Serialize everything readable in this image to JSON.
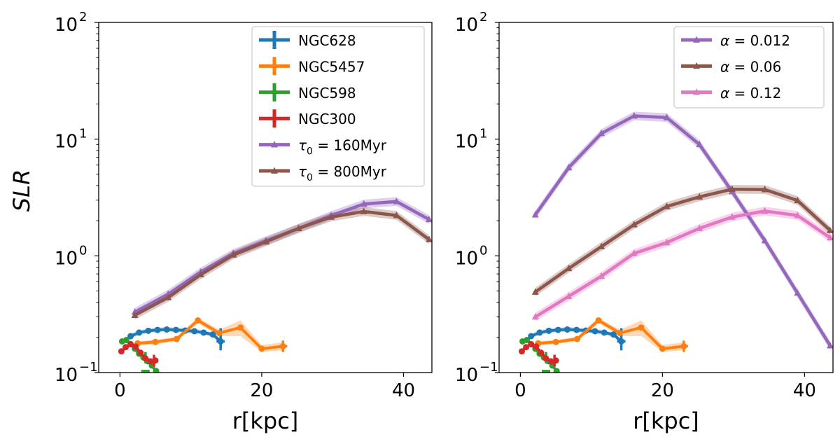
{
  "figure": {
    "ylabel": "SLR",
    "colors": {
      "NGC628": "#1f77b4",
      "NGC5457": "#ff7f0e",
      "NGC598": "#2ca02c",
      "NGC300": "#d62728",
      "purple": "#9467bd",
      "brown": "#8c564b",
      "pink": "#e377c2"
    }
  },
  "chart_data": [
    {
      "type": "line",
      "panel": "left",
      "xlabel": "r[kpc]",
      "ylabel": "SLR",
      "yscale": "log",
      "xlim": [
        -3,
        44
      ],
      "ylim": [
        0.1,
        100
      ],
      "xticks": [
        0,
        20,
        40
      ],
      "yticks": [
        {
          "value": 0.1,
          "base": "10",
          "exp": "−1"
        },
        {
          "value": 1,
          "base": "10",
          "exp": "0"
        },
        {
          "value": 10,
          "base": "10",
          "exp": "1"
        },
        {
          "value": 100,
          "base": "10",
          "exp": "2"
        }
      ],
      "legend_position": "top-right",
      "series": [
        {
          "name": "NGC628",
          "label": "NGC628",
          "kind": "obs",
          "color": "#1f77b4",
          "x": [
            1.5,
            2.7,
            4.0,
            5.3,
            6.6,
            7.9,
            9.2,
            10.5,
            11.8,
            13.1,
            14.2
          ],
          "y": [
            0.205,
            0.22,
            0.228,
            0.232,
            0.234,
            0.232,
            0.229,
            0.226,
            0.22,
            0.212,
            0.185
          ],
          "err_x": [
            14.2
          ],
          "err_lo": [
            0.155
          ],
          "err_hi": [
            0.24
          ]
        },
        {
          "name": "NGC5457",
          "label": "NGC5457",
          "kind": "obs",
          "color": "#ff7f0e",
          "x": [
            2.5,
            5.0,
            8.0,
            11.0,
            14.0,
            17.0,
            20.0,
            23.0
          ],
          "y": [
            0.178,
            0.183,
            0.194,
            0.28,
            0.218,
            0.243,
            0.16,
            0.168
          ],
          "band_lo": [
            0.17,
            0.175,
            0.185,
            0.265,
            0.205,
            0.205,
            0.15,
            0.155
          ],
          "band_hi": [
            0.186,
            0.19,
            0.203,
            0.295,
            0.233,
            0.28,
            0.172,
            0.182
          ],
          "err_x": [
            23.0
          ],
          "err_lo": [
            0.15
          ],
          "err_hi": [
            0.188
          ]
        },
        {
          "name": "NGC598",
          "label": "NGC598",
          "kind": "obs",
          "color": "#2ca02c",
          "x": [
            0.3,
            0.9,
            1.5,
            2.1,
            2.7,
            3.3,
            3.9,
            4.5,
            5.1
          ],
          "y": [
            0.185,
            0.19,
            0.175,
            0.16,
            0.145,
            0.135,
            0.125,
            0.115,
            0.103
          ],
          "err_x": [
            3.6
          ],
          "err_lo": [
            0.12
          ],
          "err_hi": [
            0.15
          ]
        },
        {
          "name": "NGC300",
          "label": "NGC300",
          "kind": "obs",
          "color": "#d62728",
          "x": [
            0.2,
            0.8,
            1.5,
            2.2,
            2.9,
            3.6,
            4.3,
            5.0
          ],
          "y": [
            0.152,
            0.165,
            0.175,
            0.167,
            0.148,
            0.132,
            0.125,
            0.127
          ],
          "err_x": [
            4.8
          ],
          "err_lo": [
            0.113
          ],
          "err_hi": [
            0.142
          ]
        },
        {
          "name": "tau0_160",
          "label_prefix": "τ",
          "label_sub": "0",
          "label_suffix": " = 160Myr",
          "kind": "model",
          "color": "#9467bd",
          "x": [
            2.1,
            6.8,
            11.4,
            16.0,
            20.6,
            25.2,
            29.8,
            34.4,
            39.0,
            43.6
          ],
          "y": [
            0.33,
            0.47,
            0.73,
            1.05,
            1.35,
            1.72,
            2.22,
            2.78,
            2.92,
            2.05
          ]
        },
        {
          "name": "tau0_800",
          "label_prefix": "τ",
          "label_sub": "0",
          "label_suffix": " = 800Myr",
          "kind": "model",
          "color": "#8c564b",
          "x": [
            2.1,
            6.8,
            11.4,
            16.0,
            20.6,
            25.2,
            29.8,
            34.4,
            39.0,
            43.6
          ],
          "y": [
            0.31,
            0.44,
            0.69,
            1.02,
            1.32,
            1.72,
            2.15,
            2.4,
            2.22,
            1.38
          ]
        }
      ]
    },
    {
      "type": "line",
      "panel": "right",
      "xlabel": "r[kpc]",
      "yscale": "log",
      "xlim": [
        -3,
        44
      ],
      "ylim": [
        0.1,
        100
      ],
      "xticks": [
        0,
        20,
        40
      ],
      "yticks": [
        {
          "value": 0.1,
          "base": "10",
          "exp": "−1"
        },
        {
          "value": 1,
          "base": "10",
          "exp": "0"
        },
        {
          "value": 10,
          "base": "10",
          "exp": "1"
        },
        {
          "value": 100,
          "base": "10",
          "exp": "2"
        }
      ],
      "legend_position": "top-right",
      "series": [
        {
          "name": "NGC628",
          "kind": "obs",
          "color": "#1f77b4",
          "x": [
            1.5,
            2.7,
            4.0,
            5.3,
            6.6,
            7.9,
            9.2,
            10.5,
            11.8,
            13.1,
            14.2
          ],
          "y": [
            0.205,
            0.22,
            0.228,
            0.232,
            0.234,
            0.232,
            0.229,
            0.226,
            0.22,
            0.212,
            0.185
          ],
          "err_x": [
            14.2
          ],
          "err_lo": [
            0.155
          ],
          "err_hi": [
            0.24
          ]
        },
        {
          "name": "NGC5457",
          "kind": "obs",
          "color": "#ff7f0e",
          "x": [
            2.5,
            5.0,
            8.0,
            11.0,
            14.0,
            17.0,
            20.0,
            23.0
          ],
          "y": [
            0.178,
            0.183,
            0.194,
            0.28,
            0.218,
            0.243,
            0.16,
            0.168
          ],
          "band_lo": [
            0.17,
            0.175,
            0.185,
            0.265,
            0.205,
            0.205,
            0.15,
            0.155
          ],
          "band_hi": [
            0.186,
            0.19,
            0.203,
            0.295,
            0.233,
            0.28,
            0.172,
            0.182
          ],
          "err_x": [
            23.0
          ],
          "err_lo": [
            0.15
          ],
          "err_hi": [
            0.188
          ]
        },
        {
          "name": "NGC598",
          "kind": "obs",
          "color": "#2ca02c",
          "x": [
            0.3,
            0.9,
            1.5,
            2.1,
            2.7,
            3.3,
            3.9,
            4.5,
            5.1
          ],
          "y": [
            0.185,
            0.19,
            0.175,
            0.16,
            0.145,
            0.135,
            0.125,
            0.115,
            0.103
          ],
          "err_x": [
            3.6
          ],
          "err_lo": [
            0.12
          ],
          "err_hi": [
            0.15
          ]
        },
        {
          "name": "NGC300",
          "kind": "obs",
          "color": "#d62728",
          "x": [
            0.2,
            0.8,
            1.5,
            2.2,
            2.9,
            3.6,
            4.3,
            5.0
          ],
          "y": [
            0.152,
            0.165,
            0.175,
            0.167,
            0.148,
            0.132,
            0.125,
            0.127
          ],
          "err_x": [
            4.8
          ],
          "err_lo": [
            0.113
          ],
          "err_hi": [
            0.142
          ]
        },
        {
          "name": "alpha_0.012",
          "label_prefix": "α",
          "label_sub": "",
          "label_suffix": " = 0.012",
          "kind": "model",
          "color": "#9467bd",
          "x": [
            2.1,
            6.8,
            11.4,
            16.0,
            20.6,
            25.2,
            29.8,
            34.4,
            39.0,
            43.6
          ],
          "y": [
            2.25,
            5.7,
            11.2,
            15.8,
            15.3,
            9.0,
            3.55,
            1.35,
            0.48,
            0.17
          ]
        },
        {
          "name": "alpha_0.06",
          "label_prefix": "α",
          "label_sub": "",
          "label_suffix": " = 0.06",
          "kind": "model",
          "color": "#8c564b",
          "x": [
            2.1,
            6.8,
            11.4,
            16.0,
            20.6,
            25.2,
            29.8,
            34.4,
            39.0,
            43.6
          ],
          "y": [
            0.49,
            0.78,
            1.2,
            1.85,
            2.65,
            3.2,
            3.72,
            3.7,
            2.98,
            1.65
          ]
        },
        {
          "name": "alpha_0.12",
          "label_prefix": "α",
          "label_sub": "",
          "label_suffix": " = 0.12",
          "kind": "model",
          "color": "#e377c2",
          "x": [
            2.1,
            6.8,
            11.4,
            16.0,
            20.6,
            25.2,
            29.8,
            34.4,
            39.0,
            43.6
          ],
          "y": [
            0.3,
            0.45,
            0.67,
            1.05,
            1.3,
            1.72,
            2.15,
            2.42,
            2.22,
            1.43
          ]
        }
      ]
    }
  ]
}
